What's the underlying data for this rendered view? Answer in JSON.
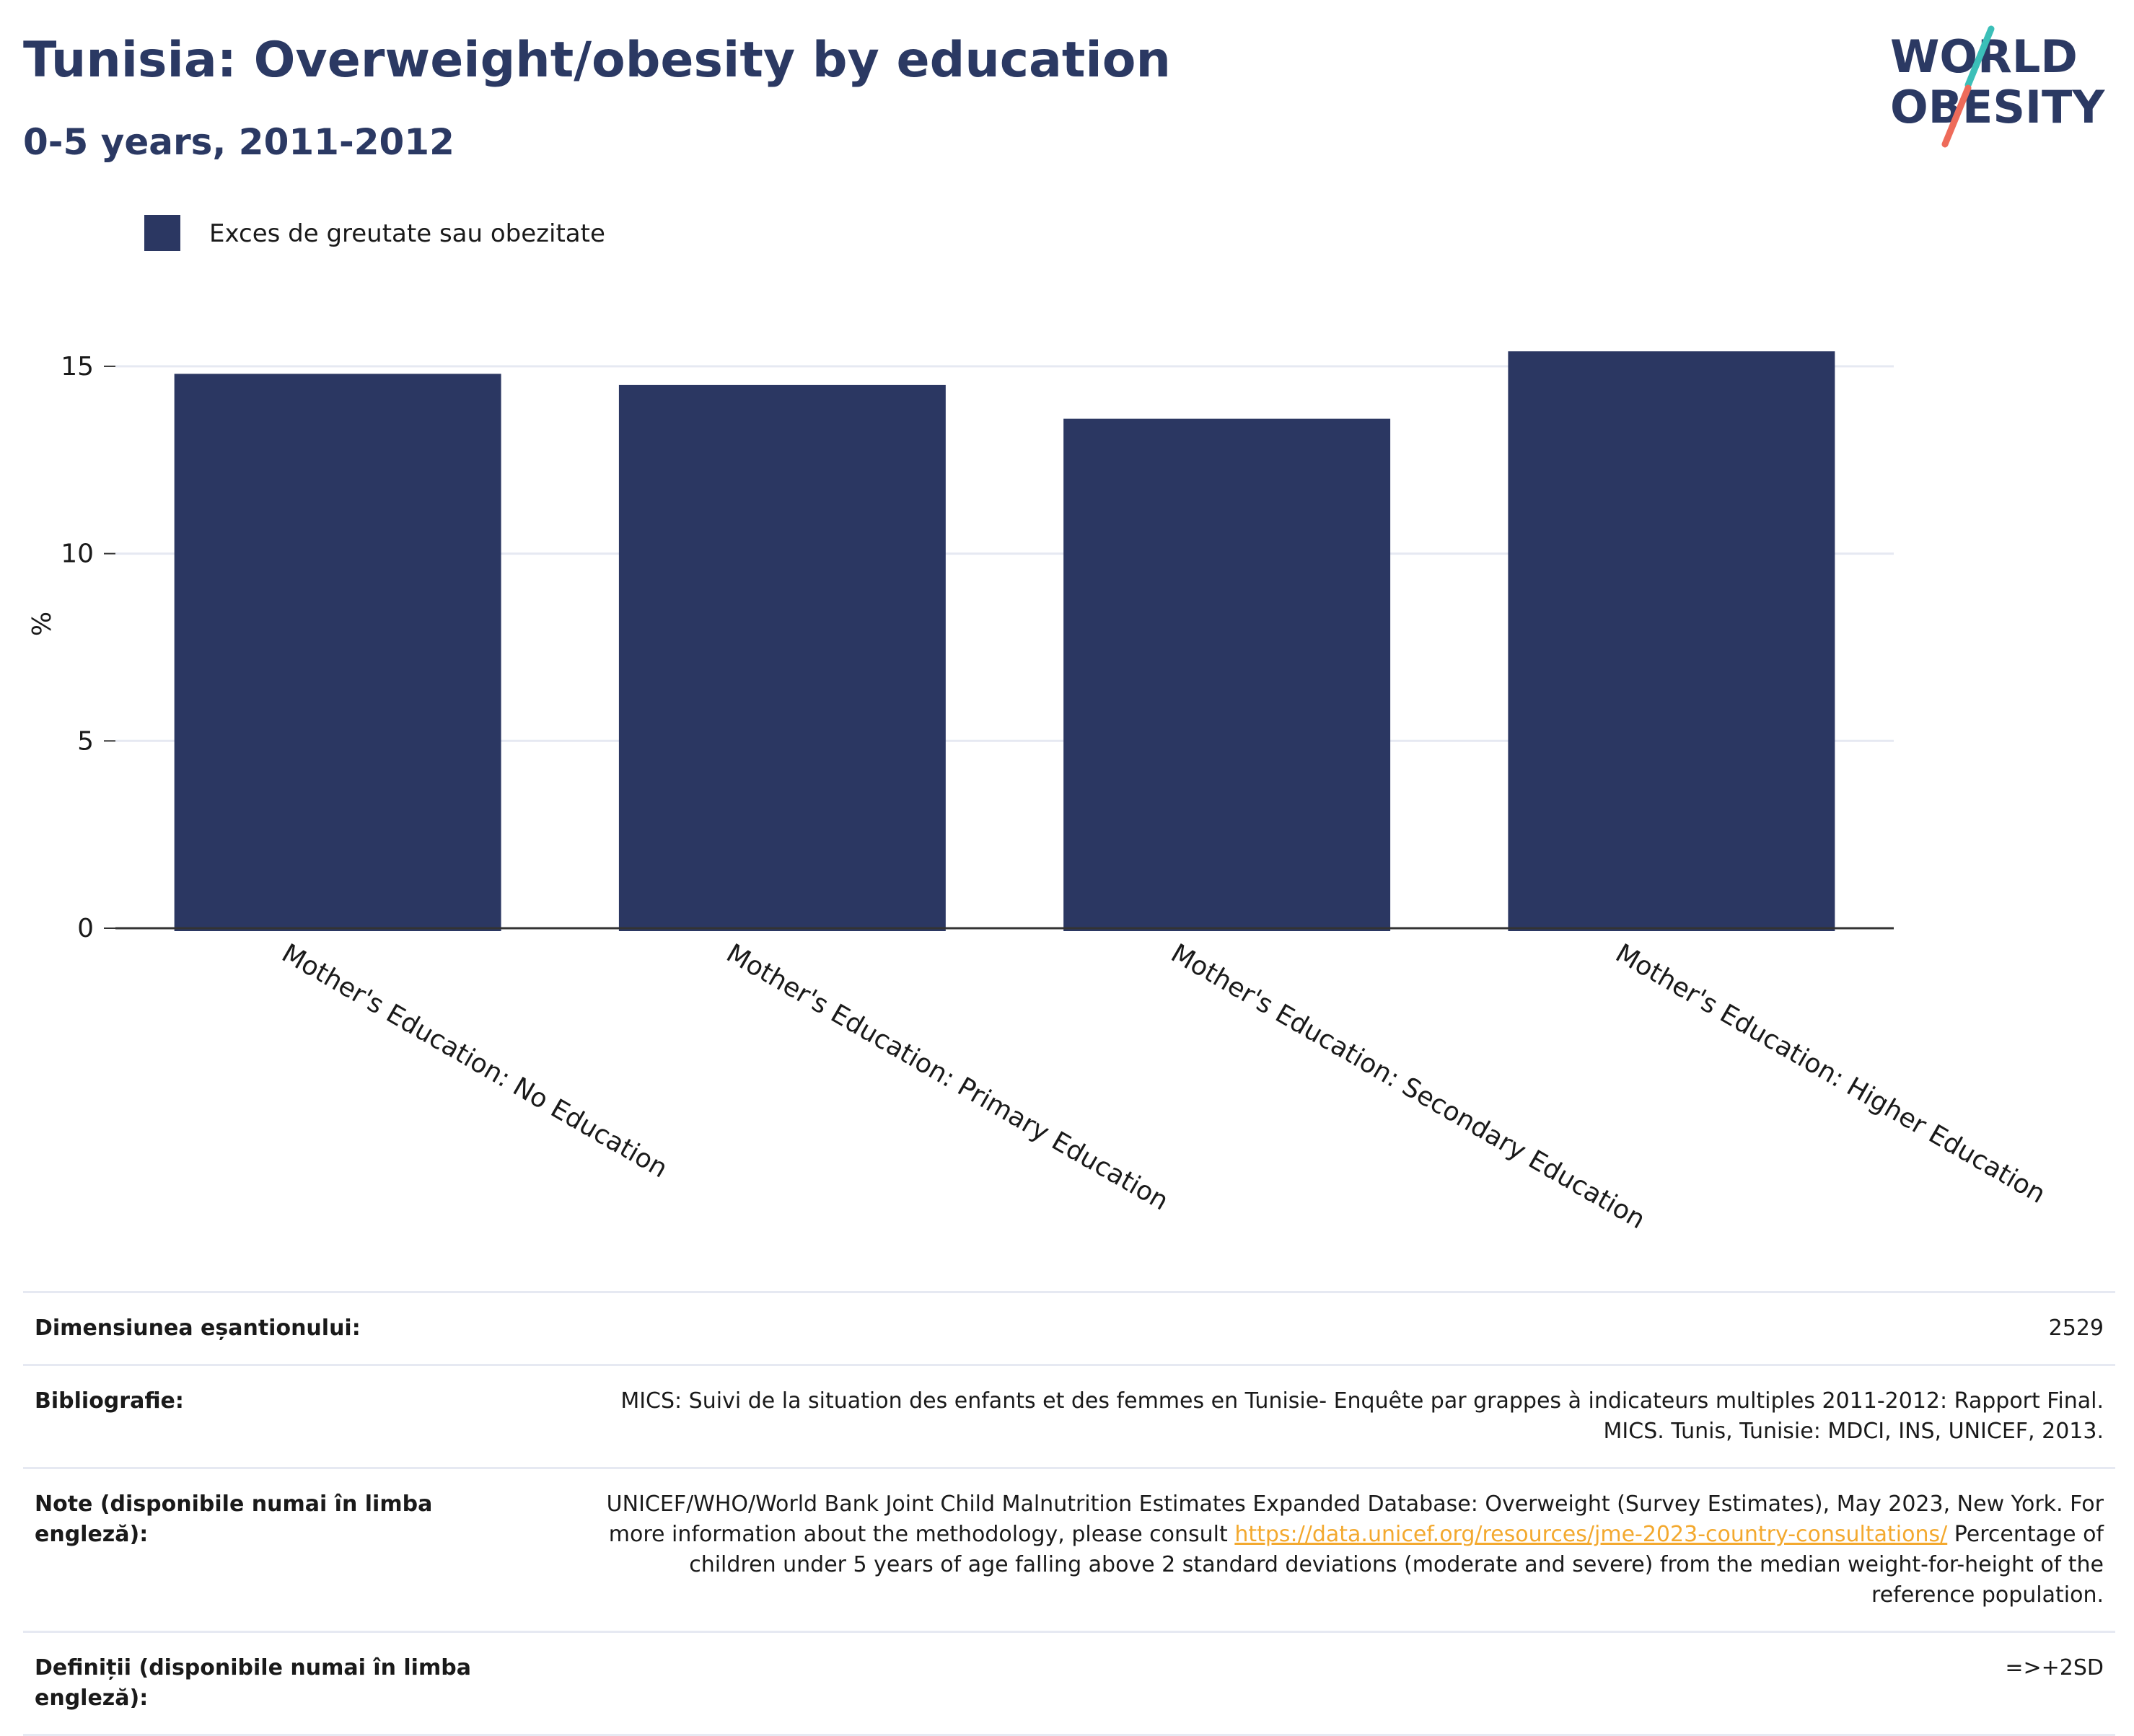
{
  "header": {
    "title": "Tunisia: Overweight/obesity by education",
    "subtitle": "0-5 years, 2011-2012"
  },
  "logo": {
    "line1": "WORLD",
    "line2": "OBESITY"
  },
  "colors": {
    "bar": "#2b3762",
    "title": "#2b3963",
    "grid": "#e6e9f2",
    "link": "#f3a92f"
  },
  "chart_data": {
    "type": "bar",
    "categories": [
      "Mother's Education: No Education",
      "Mother's Education: Primary Education",
      "Mother's Education: Secondary Education",
      "Mother's Education: Higher Education"
    ],
    "series": [
      {
        "name": "Exces de greutate sau obezitate",
        "values": [
          14.8,
          14.5,
          13.6,
          15.4
        ]
      }
    ],
    "ylabel": "%",
    "xlabel": "",
    "ylim": [
      0,
      16.5
    ],
    "yticks": [
      0,
      5,
      10,
      15
    ],
    "grid": true,
    "legend_position": "top-left"
  },
  "info": {
    "sample_label": "Dimensiunea eșantionului:",
    "sample_value": "2529",
    "biblio_label": "Bibliografie:",
    "biblio_value": "MICS: Suivi de la situation des enfants et des femmes en Tunisie- Enquête par grappes à indicateurs multiples 2011-2012: Rapport Final. MICS. Tunis, Tunisie: MDCI, INS, UNICEF, 2013.",
    "notes_label": "Note (disponibile numai în limba engleză):",
    "notes_text_1": "UNICEF/WHO/World Bank Joint Child Malnutrition Estimates Expanded Database: Overweight (Survey Estimates), May 2023, New York. For more information about the methodology, please consult ",
    "notes_link": "https://data.unicef.org/resources/jme-2023-country-consultations/",
    "notes_text_2": " Percentage of children under 5 years of age falling above 2 standard deviations (moderate and severe) from the median weight-for-height of the reference population.",
    "defs_label": "Definiții (disponibile numai în limba engleză):",
    "defs_value": "=>+2SD"
  }
}
